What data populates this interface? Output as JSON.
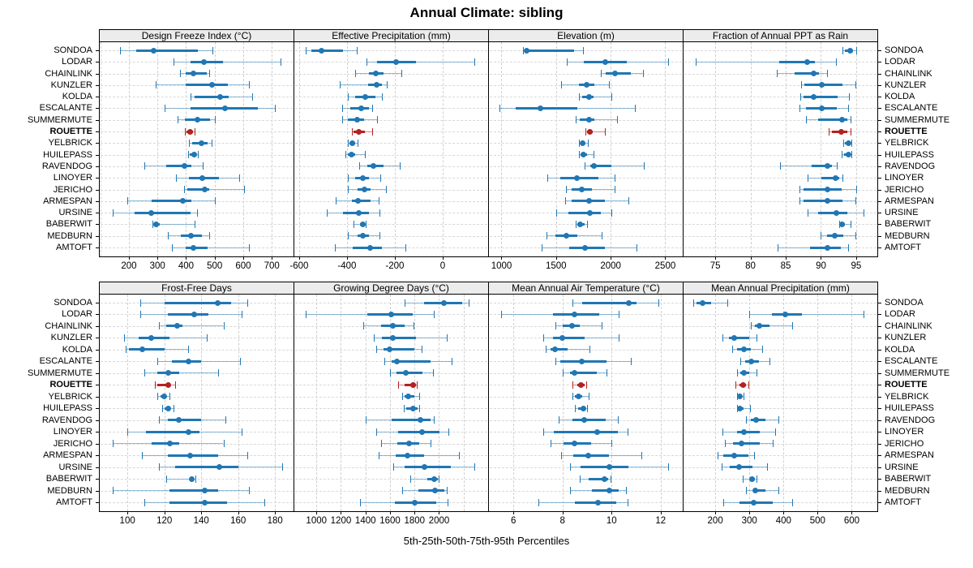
{
  "chart_data": {
    "type": "dotplot",
    "title": "Annual Climate: sibling",
    "caption": "5th-25th-50th-75th-95th Percentiles",
    "percentiles": [
      5,
      25,
      50,
      75,
      95
    ],
    "legend": "none",
    "grid": "dashed",
    "highlight_station": "ROUETTE",
    "colors": {
      "bar": "#2077b4",
      "highlight": "#b22222",
      "strip_bg": "#ececec",
      "gridline": "#cfcfcf"
    },
    "stations": [
      "SONDOA",
      "LODAR",
      "CHAINLINK",
      "KUNZLER",
      "KOLDA",
      "ESCALANTE",
      "SUMMERMUTE",
      "ROUETTE",
      "YELBRICK",
      "HUILEPASS",
      "RAVENDOG",
      "LINOYER",
      "JERICHO",
      "ARMESPAN",
      "URSINE",
      "BABERWIT",
      "MEDBURN",
      "AMTOFT"
    ],
    "panels": [
      {
        "title": "Design Freeze Index (°C)",
        "ticks": [
          200,
          300,
          400,
          500,
          600,
          700
        ],
        "domain": [
          98,
          776
        ],
        "values": [
          [
            170,
            225,
            287,
            440,
            493
          ],
          [
            355,
            415,
            463,
            530,
            730
          ],
          [
            380,
            400,
            425,
            472,
            480
          ],
          [
            295,
            400,
            490,
            545,
            620
          ],
          [
            415,
            430,
            520,
            550,
            630
          ],
          [
            325,
            415,
            535,
            650,
            710
          ],
          [
            370,
            395,
            440,
            485,
            500
          ],
          [
            395,
            401,
            414,
            425,
            430
          ],
          [
            409,
            420,
            454,
            476,
            490
          ],
          [
            406,
            414,
            428,
            436,
            440
          ],
          [
            254,
            330,
            395,
            418,
            458
          ],
          [
            366,
            410,
            458,
            516,
            585
          ],
          [
            392,
            404,
            466,
            480,
            604
          ],
          [
            195,
            279,
            388,
            419,
            501
          ],
          [
            142,
            220,
            278,
            415,
            439
          ],
          [
            282,
            287,
            295,
            307,
            430
          ],
          [
            336,
            381,
            416,
            456,
            482
          ],
          [
            351,
            399,
            426,
            476,
            620
          ]
        ]
      },
      {
        "title": "Effective Precipitation (mm)",
        "ticks": [
          -600,
          -400,
          -200,
          0
        ],
        "domain": [
          -620,
          190
        ],
        "values": [
          [
            -572,
            -550,
            -505,
            -418,
            -359
          ],
          [
            -320,
            -275,
            -193,
            -112,
            134
          ],
          [
            -365,
            -309,
            -281,
            -247,
            -171
          ],
          [
            -430,
            -310,
            -277,
            -253,
            -234
          ],
          [
            -398,
            -365,
            -325,
            -280,
            -254
          ],
          [
            -421,
            -387,
            -339,
            -307,
            -296
          ],
          [
            -421,
            -395,
            -356,
            -330,
            -275
          ],
          [
            -381,
            -373,
            -350,
            -325,
            -295
          ],
          [
            -395,
            -390,
            -379,
            -367,
            -357
          ],
          [
            -406,
            -395,
            -381,
            -365,
            -325
          ],
          [
            -350,
            -314,
            -290,
            -246,
            -180
          ],
          [
            -395,
            -365,
            -334,
            -309,
            -260
          ],
          [
            -398,
            -357,
            -328,
            -303,
            -238
          ],
          [
            -446,
            -381,
            -353,
            -303,
            -267
          ],
          [
            -484,
            -415,
            -350,
            -308,
            -264
          ],
          [
            -372,
            -345,
            -334,
            -328,
            -322
          ],
          [
            -398,
            -357,
            -334,
            -309,
            -264
          ],
          [
            -451,
            -376,
            -303,
            -253,
            -155
          ]
        ]
      },
      {
        "title": "Elevation (m)",
        "ticks": [
          1000,
          1500,
          2000,
          2500
        ],
        "domain": [
          885,
          2660
        ],
        "values": [
          [
            1200,
            1218,
            1228,
            1668,
            1748
          ],
          [
            1595,
            1755,
            1950,
            2148,
            2530
          ],
          [
            1910,
            1952,
            2042,
            2185,
            2295
          ],
          [
            1546,
            1706,
            1780,
            1853,
            1984
          ],
          [
            1706,
            1738,
            1799,
            1841,
            2008
          ],
          [
            985,
            1128,
            1354,
            1694,
            2220
          ],
          [
            1681,
            1718,
            1804,
            1853,
            2055
          ],
          [
            1772,
            1780,
            1811,
            1836,
            1950
          ],
          [
            1713,
            1723,
            1743,
            1772,
            1792
          ],
          [
            1706,
            1723,
            1748,
            1787,
            1845
          ],
          [
            1762,
            1810,
            1845,
            2008,
            2300
          ],
          [
            1418,
            1541,
            1693,
            1890,
            2038
          ],
          [
            1590,
            1644,
            1738,
            1829,
            2038
          ],
          [
            1583,
            1644,
            1804,
            1950,
            2160
          ],
          [
            1502,
            1615,
            1810,
            1910,
            2008
          ],
          [
            1681,
            1698,
            1723,
            1762,
            1787
          ],
          [
            1411,
            1497,
            1595,
            1698,
            1920
          ],
          [
            1369,
            1620,
            1762,
            1950,
            2234
          ]
        ]
      },
      {
        "title": "Fraction of Annual PPT as Rain",
        "ticks": [
          75,
          80,
          85,
          90,
          95
        ],
        "domain": [
          70.5,
          98
        ],
        "values": [
          [
            93.1,
            93.4,
            94.1,
            94.6,
            95.0
          ],
          [
            72.2,
            84.1,
            88.1,
            89.1,
            92.1
          ],
          [
            83.7,
            86.3,
            89.0,
            89.7,
            90.9
          ],
          [
            87.2,
            87.7,
            90.1,
            93.0,
            94.9
          ],
          [
            87.1,
            87.5,
            89.0,
            92.4,
            94.0
          ],
          [
            87.0,
            87.9,
            90.1,
            92.3,
            93.9
          ],
          [
            87.9,
            89.6,
            93.0,
            93.8,
            94.2
          ],
          [
            91.1,
            91.6,
            92.9,
            93.8,
            94.2
          ],
          [
            93.2,
            93.4,
            93.9,
            94.1,
            94.3
          ],
          [
            92.9,
            93.3,
            93.9,
            94.1,
            94.3
          ],
          [
            84.2,
            88.7,
            90.9,
            91.6,
            92.2
          ],
          [
            88.1,
            90.1,
            92.1,
            92.6,
            93.1
          ],
          [
            87.0,
            87.5,
            90.9,
            92.9,
            95.0
          ],
          [
            87.0,
            87.5,
            90.9,
            93.0,
            94.9
          ],
          [
            88.1,
            89.6,
            92.2,
            93.8,
            96.1
          ],
          [
            92.6,
            92.7,
            93.0,
            93.4,
            94.2
          ],
          [
            90.0,
            90.9,
            92.0,
            93.2,
            94.9
          ],
          [
            83.9,
            88.5,
            90.9,
            92.8,
            93.9
          ]
        ]
      },
      {
        "title": "Frost-Free Days",
        "ticks": [
          100,
          120,
          140,
          160,
          180
        ],
        "domain": [
          85,
          190
        ],
        "values": [
          [
            107,
            120,
            149,
            156,
            165
          ],
          [
            107,
            122,
            136,
            144,
            162
          ],
          [
            117,
            121,
            127,
            130,
            152
          ],
          [
            98,
            106,
            113,
            123,
            143
          ],
          [
            99,
            101,
            108,
            120,
            133
          ],
          [
            116,
            124,
            133,
            140,
            161
          ],
          [
            109,
            116,
            122,
            128,
            149
          ],
          [
            115,
            116,
            122,
            123,
            126
          ],
          [
            116,
            118,
            120,
            121,
            123
          ],
          [
            119,
            120,
            122,
            123,
            125
          ],
          [
            117,
            122,
            128,
            140,
            153
          ],
          [
            100,
            110,
            133,
            139,
            162
          ],
          [
            92,
            113,
            123,
            128,
            152
          ],
          [
            108,
            122,
            134,
            149,
            165
          ],
          [
            117,
            126,
            150,
            160,
            184
          ],
          [
            121,
            134,
            135,
            136,
            137
          ],
          [
            92,
            123,
            142,
            149,
            166
          ],
          [
            109,
            123,
            142,
            154,
            174
          ]
        ]
      },
      {
        "title": "Growing Degree Days (°C)",
        "ticks": [
          1000,
          1200,
          1400,
          1600,
          1800,
          2000
        ],
        "domain": [
          820,
          2400
        ],
        "values": [
          [
            1720,
            1875,
            2040,
            2190,
            2240
          ],
          [
            915,
            1415,
            1610,
            1785,
            1960
          ],
          [
            1385,
            1525,
            1625,
            1720,
            1795
          ],
          [
            1465,
            1535,
            1625,
            1815,
            2060
          ],
          [
            1490,
            1545,
            1600,
            1800,
            1860
          ],
          [
            1555,
            1610,
            1655,
            1930,
            2105
          ],
          [
            1600,
            1655,
            1730,
            1865,
            1950
          ],
          [
            1665,
            1720,
            1790,
            1810,
            1820
          ],
          [
            1700,
            1720,
            1750,
            1800,
            1840
          ],
          [
            1710,
            1730,
            1790,
            1825,
            1835
          ],
          [
            1400,
            1610,
            1850,
            1930,
            1960
          ],
          [
            1490,
            1665,
            1860,
            2005,
            2075
          ],
          [
            1525,
            1660,
            1755,
            1840,
            1930
          ],
          [
            1505,
            1645,
            1740,
            1875,
            2160
          ],
          [
            1625,
            1720,
            1880,
            2095,
            2290
          ],
          [
            1765,
            1905,
            1960,
            1990,
            2000
          ],
          [
            1700,
            1830,
            1970,
            2040,
            2065
          ],
          [
            1355,
            1640,
            1800,
            1975,
            2070
          ]
        ]
      },
      {
        "title": "Mean Annual Air Temperature (°C)",
        "ticks": [
          6,
          8,
          10,
          12
        ],
        "domain": [
          5.0,
          12.9
        ],
        "values": [
          [
            8.4,
            8.8,
            10.7,
            11.0,
            11.9
          ],
          [
            5.5,
            7.6,
            8.5,
            9.5,
            10.3
          ],
          [
            7.7,
            8.0,
            8.4,
            8.7,
            9.6
          ],
          [
            7.2,
            7.6,
            8.0,
            8.9,
            10.3
          ],
          [
            7.3,
            7.5,
            7.7,
            8.2,
            9.1
          ],
          [
            7.7,
            7.9,
            8.8,
            9.8,
            10.8
          ],
          [
            8.0,
            8.3,
            8.5,
            9.4,
            9.8
          ],
          [
            8.4,
            8.6,
            8.75,
            8.9,
            8.95
          ],
          [
            8.4,
            8.5,
            8.65,
            8.8,
            9.05
          ],
          [
            8.5,
            8.65,
            8.85,
            8.95,
            9.0
          ],
          [
            7.85,
            8.4,
            8.9,
            9.75,
            10.25
          ],
          [
            7.2,
            7.65,
            9.4,
            10.25,
            10.65
          ],
          [
            7.5,
            8.05,
            8.5,
            9.15,
            10.0
          ],
          [
            7.95,
            8.45,
            9.05,
            9.9,
            11.2
          ],
          [
            8.3,
            8.75,
            9.9,
            10.7,
            12.3
          ],
          [
            8.7,
            9.05,
            9.7,
            9.85,
            9.95
          ],
          [
            8.3,
            9.2,
            9.9,
            10.3,
            10.6
          ],
          [
            7.0,
            8.5,
            9.45,
            10.2,
            10.65
          ]
        ]
      },
      {
        "title": "Mean Annual Precipitation (mm)",
        "ticks": [
          200,
          300,
          400,
          500,
          600
        ],
        "domain": [
          107,
          675
        ],
        "values": [
          [
            135,
            145,
            163,
            187,
            235
          ],
          [
            300,
            365,
            405,
            455,
            635
          ],
          [
            305,
            315,
            330,
            360,
            425
          ],
          [
            220,
            240,
            255,
            300,
            322
          ],
          [
            250,
            265,
            285,
            305,
            338
          ],
          [
            273,
            287,
            305,
            328,
            360
          ],
          [
            265,
            273,
            283,
            300,
            320
          ],
          [
            260,
            270,
            281,
            291,
            297
          ],
          [
            263,
            266,
            271,
            278,
            283
          ],
          [
            265,
            268,
            273,
            283,
            301
          ],
          [
            289,
            305,
            320,
            346,
            386
          ],
          [
            221,
            265,
            284,
            331,
            376
          ],
          [
            229,
            251,
            276,
            331,
            369
          ],
          [
            206,
            224,
            255,
            296,
            313
          ],
          [
            218,
            242,
            269,
            308,
            352
          ],
          [
            281,
            303,
            308,
            315,
            320
          ],
          [
            291,
            313,
            318,
            346,
            384
          ],
          [
            224,
            271,
            313,
            368,
            425
          ]
        ]
      }
    ]
  }
}
